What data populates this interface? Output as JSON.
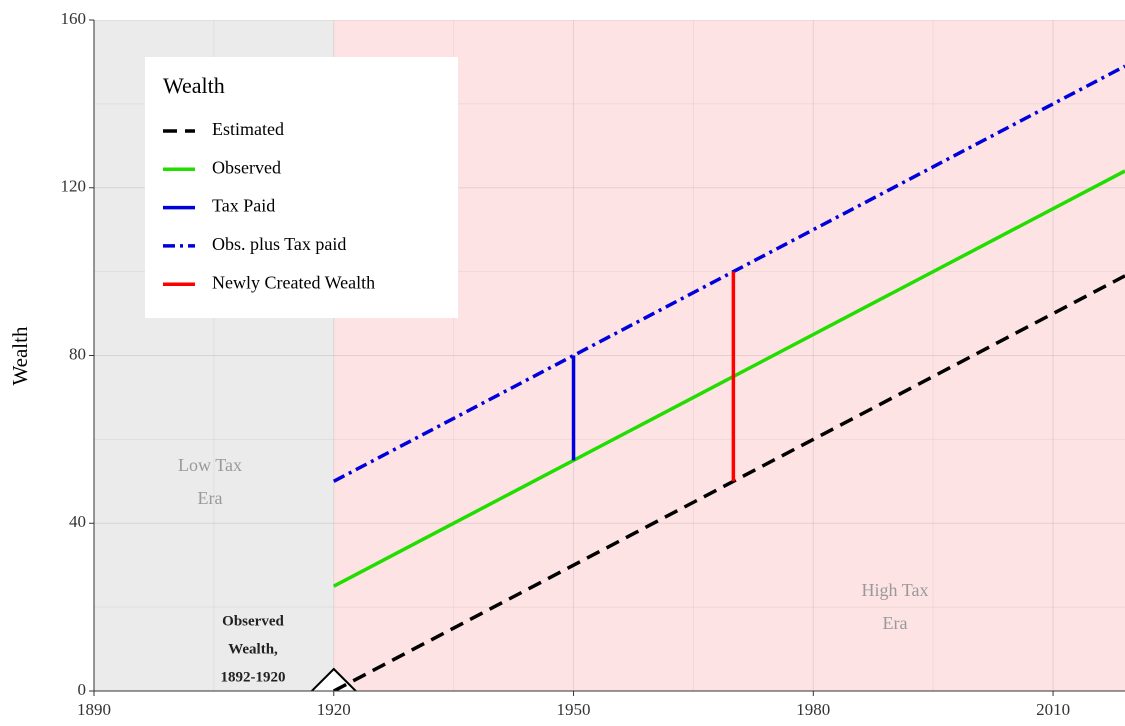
{
  "chart_data": {
    "type": "line",
    "ylabel": "Wealth",
    "xlim": [
      1890,
      2019
    ],
    "ylim": [
      0,
      160
    ],
    "xticks": [
      1890,
      1920,
      1950,
      1980,
      2010
    ],
    "yticks": [
      0,
      40,
      80,
      120,
      160
    ],
    "xminor": [
      1905,
      1935,
      1965,
      1995
    ],
    "yminor": [
      20,
      60,
      100,
      140
    ],
    "grid": true,
    "legend": {
      "title": "Wealth",
      "corner": "upper left"
    },
    "regions": [
      {
        "xlim": [
          1890,
          1920
        ],
        "color": "#ebebeb"
      },
      {
        "xlim": [
          1920,
          2019
        ],
        "color": "#fde3e4"
      }
    ],
    "annotations": [
      {
        "lines": [
          "Low Tax",
          "Era"
        ],
        "color": "#999999",
        "bold": false
      },
      {
        "lines": [
          "High Tax",
          "Era"
        ],
        "color": "#999999",
        "bold": false
      },
      {
        "lines": [
          "Observed",
          "Wealth,",
          "1892-1920"
        ],
        "color": "#222222",
        "bold": true
      }
    ],
    "marker": {
      "x": 1920,
      "y": 0
    },
    "series": [
      {
        "name": "Estimated",
        "color": "#000000",
        "dash": "14 8",
        "x": [
          1920,
          2019
        ],
        "values": [
          0,
          99
        ]
      },
      {
        "name": "Observed",
        "color": "#22dd00",
        "dash": null,
        "x": [
          1920,
          2019
        ],
        "values": [
          25,
          124
        ]
      },
      {
        "name": "Tax Paid",
        "color": "#0000dd",
        "dash": null,
        "x": [
          1950,
          1950
        ],
        "values": [
          55,
          80
        ]
      },
      {
        "name": "Obs. plus Tax paid",
        "color": "#0000dd",
        "dash": "12 5 3 5",
        "x": [
          1920,
          2019
        ],
        "values": [
          50,
          149
        ]
      },
      {
        "name": "Newly Created Wealth",
        "color": "#ff0000",
        "dash": null,
        "x": [
          1970,
          1970
        ],
        "values": [
          50,
          100
        ]
      }
    ]
  }
}
